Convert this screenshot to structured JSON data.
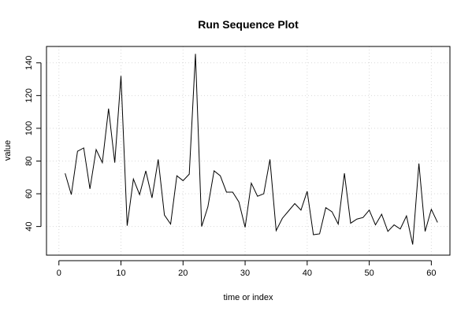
{
  "chart_data": {
    "type": "line",
    "title": "Run Sequence Plot",
    "xlabel": "time or index",
    "ylabel": "value",
    "xlim": [
      -2,
      63
    ],
    "ylim": [
      22.5,
      150
    ],
    "x_ticks": [
      0,
      10,
      20,
      30,
      40,
      50,
      60
    ],
    "y_ticks": [
      40,
      60,
      80,
      100,
      120,
      140
    ],
    "grid": true,
    "colors": {
      "line": "#000000",
      "grid": "#d9d9d9",
      "frame": "#000000"
    },
    "series": [
      {
        "x": [
          1,
          2,
          3,
          4,
          5,
          6,
          7,
          8,
          9,
          10,
          11,
          12,
          13,
          14,
          15,
          16,
          17,
          18,
          19,
          20,
          21,
          22,
          23,
          24,
          25,
          26,
          27,
          28,
          29,
          30,
          31,
          32,
          33,
          34,
          35,
          36,
          37,
          38,
          39,
          40,
          41,
          42,
          43,
          44,
          45,
          46,
          47,
          48,
          49,
          50,
          51,
          52,
          53,
          54,
          55,
          56,
          57,
          58,
          59,
          60,
          61
        ],
        "values": [
          72.5,
          59.5,
          86,
          88,
          63,
          87,
          79,
          112,
          79,
          132,
          40.5,
          69,
          59.5,
          74,
          57.5,
          81,
          47,
          41.5,
          71,
          68,
          72,
          145.5,
          40,
          52,
          74,
          71,
          61,
          61,
          55,
          39.5,
          66.5,
          58.5,
          60,
          81,
          37.5,
          45,
          49.5,
          54,
          50,
          61.5,
          35,
          35.5,
          51.5,
          49,
          41.5,
          72.5,
          42,
          44.5,
          45.5,
          50,
          41,
          47.5,
          37,
          41,
          38.5,
          46.5,
          29,
          78.5,
          37,
          50.5,
          42.5
        ]
      }
    ]
  }
}
